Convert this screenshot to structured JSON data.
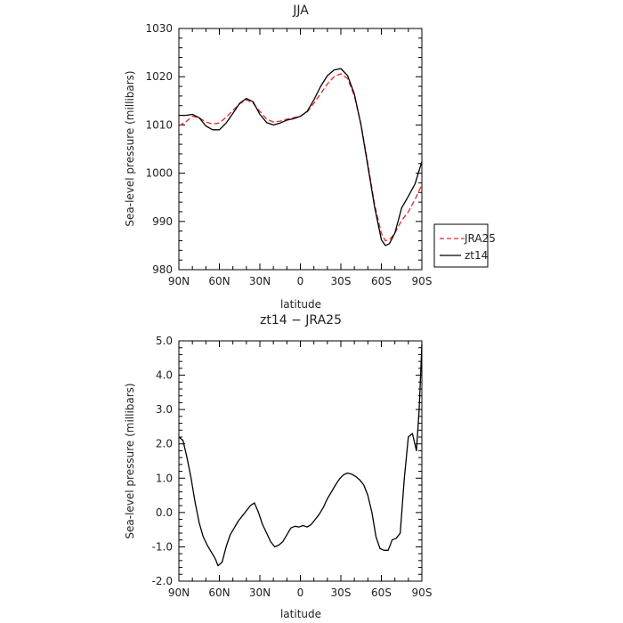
{
  "chart_data": [
    {
      "type": "line",
      "title": "JJA",
      "xlabel": "latitude",
      "ylabel": "Sea-level pressure (millibars)",
      "x_tick_labels": [
        "90N",
        "60N",
        "30N",
        "0",
        "30S",
        "60S",
        "90S"
      ],
      "x_tick_values": [
        90,
        60,
        30,
        0,
        -30,
        -60,
        -90
      ],
      "xlim": [
        90,
        -90
      ],
      "ylim": [
        980,
        1030
      ],
      "y_tick_labels": [
        "980",
        "990",
        "1000",
        "1010",
        "1020",
        "1030"
      ],
      "y_tick_values": [
        980,
        990,
        1000,
        1010,
        1020,
        1030
      ],
      "legend": "right",
      "series": [
        {
          "name": "JRA25",
          "color": "#e8262b",
          "dash": true,
          "x": [
            90,
            85,
            80,
            75,
            70,
            65,
            60,
            55,
            50,
            45,
            40,
            35,
            30,
            25,
            20,
            15,
            10,
            5,
            0,
            -5,
            -10,
            -15,
            -20,
            -25,
            -30,
            -35,
            -40,
            -45,
            -50,
            -55,
            -60,
            -63,
            -66,
            -70,
            -75,
            -80,
            -85,
            -90
          ],
          "values": [
            1009.8,
            1010.6,
            1011.8,
            1011.5,
            1010.6,
            1010.2,
            1010.4,
            1011.6,
            1013.0,
            1014.4,
            1015.2,
            1014.5,
            1012.8,
            1011.2,
            1010.6,
            1010.8,
            1011.2,
            1011.5,
            1011.8,
            1012.7,
            1014.5,
            1016.5,
            1018.5,
            1020.0,
            1020.6,
            1019.6,
            1016.0,
            1010.0,
            1002.0,
            993.5,
            987.5,
            986.0,
            986.2,
            987.6,
            990.2,
            992.0,
            994.6,
            997.6
          ]
        },
        {
          "name": "zt14",
          "color": "#000000",
          "dash": false,
          "x": [
            90,
            85,
            80,
            75,
            70,
            65,
            60,
            55,
            50,
            45,
            40,
            35,
            30,
            25,
            20,
            15,
            10,
            5,
            0,
            -5,
            -10,
            -15,
            -20,
            -25,
            -30,
            -35,
            -40,
            -45,
            -50,
            -55,
            -60,
            -63,
            -66,
            -70,
            -75,
            -80,
            -85,
            -90
          ],
          "values": [
            1012.0,
            1012.0,
            1012.2,
            1011.5,
            1009.8,
            1009.0,
            1009.0,
            1010.4,
            1012.4,
            1014.5,
            1015.5,
            1014.8,
            1012.2,
            1010.5,
            1010.0,
            1010.4,
            1011.0,
            1011.3,
            1011.8,
            1012.8,
            1015.2,
            1018.0,
            1020.2,
            1021.4,
            1021.7,
            1020.2,
            1016.4,
            1009.8,
            1001.5,
            993.0,
            986.2,
            985.0,
            985.4,
            987.6,
            992.8,
            995.2,
            997.8,
            1002.4
          ]
        }
      ]
    },
    {
      "type": "line",
      "title": "zt14 − JRA25",
      "xlabel": "latitude",
      "ylabel": "Sea-level pressure (millibars)",
      "x_tick_labels": [
        "90N",
        "60N",
        "30N",
        "0",
        "30S",
        "60S",
        "90S"
      ],
      "x_tick_values": [
        90,
        60,
        30,
        0,
        -30,
        -60,
        -90
      ],
      "xlim": [
        90,
        -90
      ],
      "ylim": [
        -2,
        5
      ],
      "y_tick_labels": [
        "-2.0",
        "-1.0",
        "0.0",
        "1.0",
        "2.0",
        "3.0",
        "4.0",
        "5.0"
      ],
      "y_tick_values": [
        -2,
        -1,
        0,
        1,
        2,
        3,
        4,
        5
      ],
      "series": [
        {
          "name": "",
          "color": "#000000",
          "dash": false,
          "x": [
            90,
            87,
            84,
            81,
            78,
            75,
            72,
            69,
            66,
            63,
            61,
            58,
            55,
            52,
            49,
            46,
            43,
            40,
            37,
            34,
            31,
            28,
            25,
            22,
            19,
            16,
            13,
            10,
            7,
            4,
            1,
            -2,
            -5,
            -8,
            -11,
            -14,
            -17,
            -20,
            -23,
            -26,
            -29,
            -32,
            -35,
            -38,
            -41,
            -44,
            -47,
            -50,
            -53,
            -56,
            -59,
            -62,
            -65,
            -68,
            -71,
            -74,
            -77,
            -80,
            -83,
            -86,
            -88,
            -90
          ],
          "values": [
            2.2,
            2.1,
            1.6,
            1.0,
            0.3,
            -0.3,
            -0.7,
            -0.95,
            -1.15,
            -1.35,
            -1.55,
            -1.45,
            -1.0,
            -0.65,
            -0.45,
            -0.25,
            -0.1,
            0.05,
            0.2,
            0.28,
            0.0,
            -0.35,
            -0.6,
            -0.85,
            -1.0,
            -0.95,
            -0.85,
            -0.65,
            -0.45,
            -0.4,
            -0.42,
            -0.38,
            -0.42,
            -0.35,
            -0.2,
            -0.05,
            0.15,
            0.4,
            0.6,
            0.8,
            0.98,
            1.1,
            1.15,
            1.12,
            1.05,
            0.95,
            0.8,
            0.5,
            0.0,
            -0.7,
            -1.05,
            -1.1,
            -1.1,
            -0.8,
            -0.75,
            -0.6,
            1.0,
            2.2,
            2.3,
            1.8,
            3.0,
            4.9
          ]
        }
      ]
    }
  ],
  "legend_labels": {
    "jra": "JRA25",
    "zt": "zt14"
  }
}
